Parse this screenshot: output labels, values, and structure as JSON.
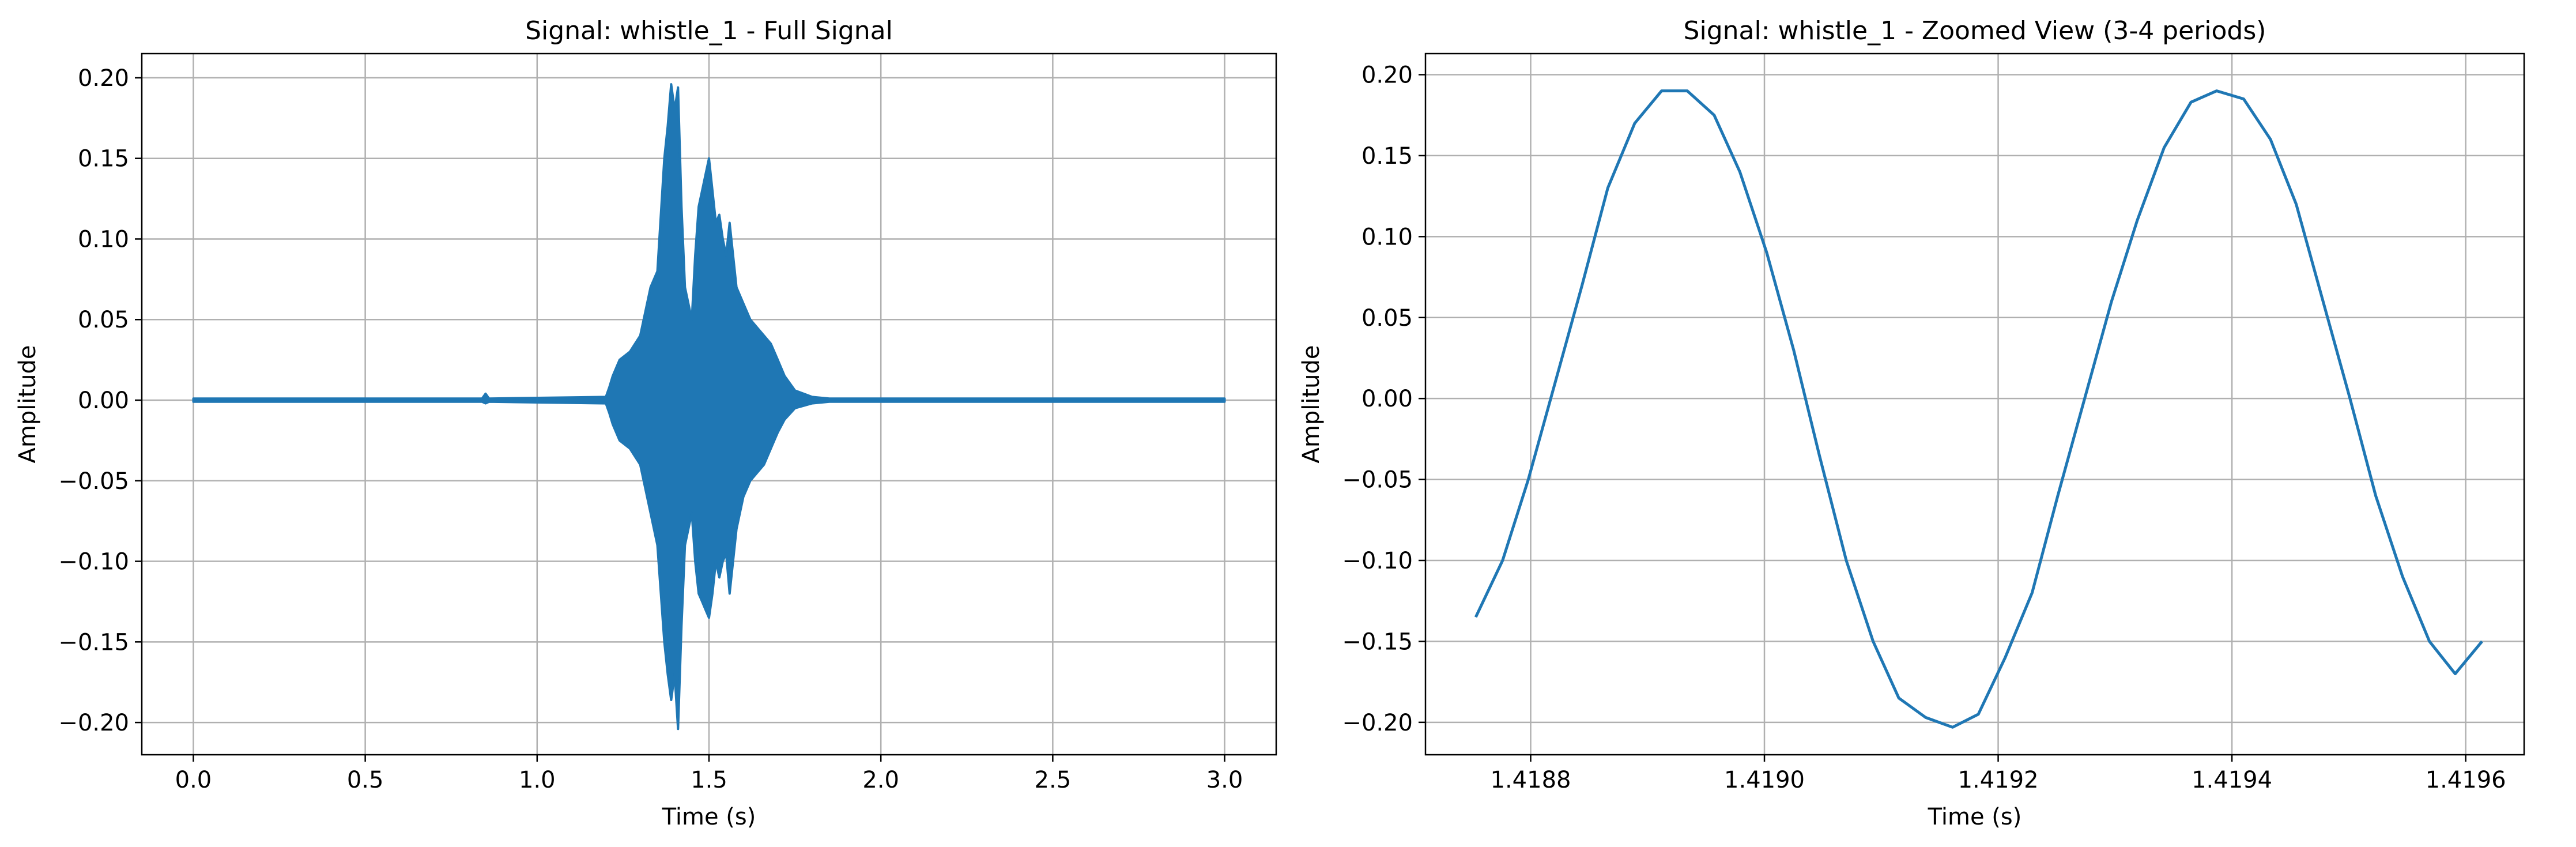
{
  "colors": {
    "line": "#1f77b4",
    "grid": "#b0b0b0"
  },
  "chart_data": [
    {
      "type": "line",
      "title": "Signal: whistle_1 - Full Signal",
      "xlabel": "Time (s)",
      "ylabel": "Amplitude",
      "grid": true,
      "xlim": [
        -0.15,
        3.15
      ],
      "ylim": [
        -0.22,
        0.215
      ],
      "xticks": [
        0.0,
        0.5,
        1.0,
        1.5,
        2.0,
        2.5,
        3.0
      ],
      "xtick_labels": [
        "0.0",
        "0.5",
        "1.0",
        "1.5",
        "2.0",
        "2.5",
        "3.0"
      ],
      "yticks": [
        -0.2,
        -0.15,
        -0.1,
        -0.05,
        0.0,
        0.05,
        0.1,
        0.15,
        0.2
      ],
      "ytick_labels": [
        "−0.20",
        "−0.15",
        "−0.10",
        "−0.05",
        "0.00",
        "0.05",
        "0.10",
        "0.15",
        "0.20"
      ],
      "series": [
        {
          "style": "filled-envelope",
          "x": [
            0.0,
            0.84,
            0.85,
            0.86,
            1.2,
            1.21,
            1.22,
            1.24,
            1.27,
            1.3,
            1.33,
            1.35,
            1.37,
            1.38,
            1.39,
            1.4,
            1.41,
            1.42,
            1.43,
            1.44,
            1.45,
            1.46,
            1.47,
            1.48,
            1.49,
            1.5,
            1.51,
            1.52,
            1.53,
            1.54,
            1.55,
            1.56,
            1.58,
            1.6,
            1.62,
            1.64,
            1.66,
            1.68,
            1.7,
            1.72,
            1.75,
            1.8,
            1.85,
            3.0
          ],
          "upper": [
            0.001,
            0.001,
            0.004,
            0.001,
            0.002,
            0.008,
            0.015,
            0.025,
            0.03,
            0.04,
            0.07,
            0.08,
            0.15,
            0.17,
            0.196,
            0.18,
            0.194,
            0.12,
            0.07,
            0.06,
            0.05,
            0.09,
            0.12,
            0.13,
            0.14,
            0.15,
            0.13,
            0.11,
            0.115,
            0.1,
            0.09,
            0.11,
            0.07,
            0.06,
            0.05,
            0.045,
            0.04,
            0.035,
            0.025,
            0.015,
            0.006,
            0.002,
            0.001,
            0.001
          ],
          "lower": [
            -0.001,
            -0.001,
            -0.002,
            -0.001,
            -0.002,
            -0.008,
            -0.015,
            -0.025,
            -0.03,
            -0.04,
            -0.07,
            -0.09,
            -0.15,
            -0.17,
            -0.186,
            -0.17,
            -0.204,
            -0.14,
            -0.09,
            -0.08,
            -0.07,
            -0.1,
            -0.12,
            -0.125,
            -0.13,
            -0.135,
            -0.12,
            -0.1,
            -0.11,
            -0.1,
            -0.095,
            -0.12,
            -0.08,
            -0.06,
            -0.05,
            -0.045,
            -0.04,
            -0.03,
            -0.02,
            -0.012,
            -0.005,
            -0.002,
            -0.001,
            -0.001
          ]
        }
      ]
    },
    {
      "type": "line",
      "title": "Signal: whistle_1 - Zoomed View (3-4 periods)",
      "xlabel": "Time (s)",
      "ylabel": "Amplitude",
      "grid": true,
      "xlim": [
        1.41871,
        1.41965
      ],
      "ylim": [
        -0.22,
        0.213
      ],
      "xticks": [
        1.4188,
        1.419,
        1.4192,
        1.4194,
        1.4196
      ],
      "xtick_labels": [
        "1.4188",
        "1.4190",
        "1.4192",
        "1.4194",
        "1.4196"
      ],
      "yticks": [
        -0.2,
        -0.15,
        -0.1,
        -0.05,
        0.0,
        0.05,
        0.1,
        0.15,
        0.2
      ],
      "ytick_labels": [
        "−0.20",
        "−0.15",
        "−0.10",
        "−0.05",
        "0.00",
        "0.05",
        "0.10",
        "0.15",
        "0.20"
      ],
      "series": [
        {
          "x": [
            1.418753,
            1.418776,
            1.418798,
            1.418821,
            1.418844,
            1.418866,
            1.418889,
            1.418912,
            1.418934,
            1.418957,
            1.418979,
            1.419002,
            1.419025,
            1.419047,
            1.41907,
            1.419093,
            1.419115,
            1.419138,
            1.419161,
            1.419183,
            1.419206,
            1.419229,
            1.419251,
            1.419274,
            1.419297,
            1.419319,
            1.419342,
            1.419365,
            1.419387,
            1.41941,
            1.419433,
            1.419455,
            1.419478,
            1.419501,
            1.419523,
            1.419546,
            1.419569,
            1.419591,
            1.419614
          ],
          "y": [
            -0.135,
            -0.1,
            -0.05,
            0.01,
            0.07,
            0.13,
            0.17,
            0.19,
            0.19,
            0.175,
            0.14,
            0.09,
            0.03,
            -0.035,
            -0.1,
            -0.15,
            -0.185,
            -0.197,
            -0.203,
            -0.195,
            -0.16,
            -0.12,
            -0.06,
            0.0,
            0.06,
            0.11,
            0.155,
            0.183,
            0.19,
            0.185,
            0.16,
            0.12,
            0.06,
            0.0,
            -0.06,
            -0.11,
            -0.15,
            -0.17,
            -0.15
          ]
        }
      ]
    }
  ]
}
